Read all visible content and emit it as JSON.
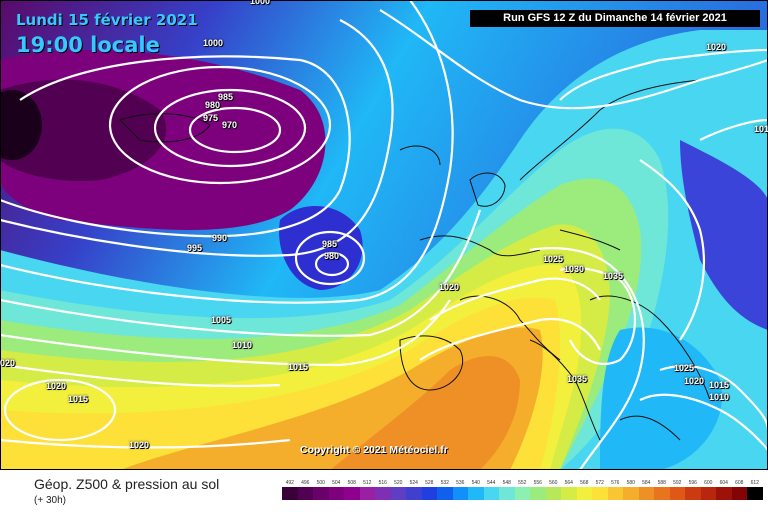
{
  "header": {
    "date": "Lundi 15 février 2021",
    "time": "19:00 locale",
    "run": "Run GFS 12 Z du Dimanche 14 février 2021"
  },
  "copyright": "Copyright © 2021 Météociel.fr",
  "legend": {
    "title": "Géop. Z500 & pression au sol",
    "subtitle": "(+ 30h)",
    "ticks": [
      "492",
      "496",
      "500",
      "504",
      "508",
      "512",
      "516",
      "520",
      "524",
      "528",
      "532",
      "536",
      "540",
      "544",
      "548",
      "552",
      "556",
      "560",
      "564",
      "568",
      "572",
      "576",
      "580",
      "584",
      "588",
      "592",
      "596",
      "600",
      "604",
      "608",
      "612"
    ],
    "colors": [
      "#3a003a",
      "#520052",
      "#6a006a",
      "#7d007d",
      "#8e008e",
      "#9b1fa3",
      "#7f2fb3",
      "#5e3ec3",
      "#3f3fd0",
      "#1f3fe0",
      "#1060ee",
      "#1090f8",
      "#20b8f6",
      "#48d6f0",
      "#6ee6d8",
      "#8cf0b0",
      "#9bec7c",
      "#b6e85a",
      "#d6ec46",
      "#f2f03c",
      "#fde038",
      "#f7c632",
      "#f4ae2c",
      "#ee9026",
      "#e8741e",
      "#e05818",
      "#cc3a12",
      "#b8260e",
      "#9c1208",
      "#820404",
      "#000000"
    ]
  },
  "isobars": [
    {
      "label": "1000",
      "id": "a"
    },
    {
      "label": "1000",
      "id": "b"
    },
    {
      "label": "985",
      "id": "c"
    },
    {
      "label": "980",
      "id": "d"
    },
    {
      "label": "975",
      "id": "e"
    },
    {
      "label": "970",
      "id": "f"
    },
    {
      "label": "995",
      "id": "g"
    },
    {
      "label": "990",
      "id": "h"
    },
    {
      "label": "985",
      "id": "i"
    },
    {
      "label": "980",
      "id": "j"
    },
    {
      "label": "1005",
      "id": "k"
    },
    {
      "label": "1010",
      "id": "l"
    },
    {
      "label": "1015",
      "id": "m"
    },
    {
      "label": "1020",
      "id": "n"
    },
    {
      "label": "1020",
      "id": "o"
    },
    {
      "label": "1015",
      "id": "p"
    },
    {
      "label": "1020",
      "id": "q"
    },
    {
      "label": "1020",
      "id": "r"
    },
    {
      "label": "1025",
      "id": "s"
    },
    {
      "label": "1030",
      "id": "t"
    },
    {
      "label": "1035",
      "id": "u"
    },
    {
      "label": "1035",
      "id": "v"
    },
    {
      "label": "1025",
      "id": "w"
    },
    {
      "label": "1020",
      "id": "x"
    },
    {
      "label": "1015",
      "id": "y"
    },
    {
      "label": "1010",
      "id": "z"
    },
    {
      "label": "1020",
      "id": "aa"
    },
    {
      "label": "020",
      "id": "ab"
    },
    {
      "label": "101",
      "id": "ac"
    }
  ]
}
